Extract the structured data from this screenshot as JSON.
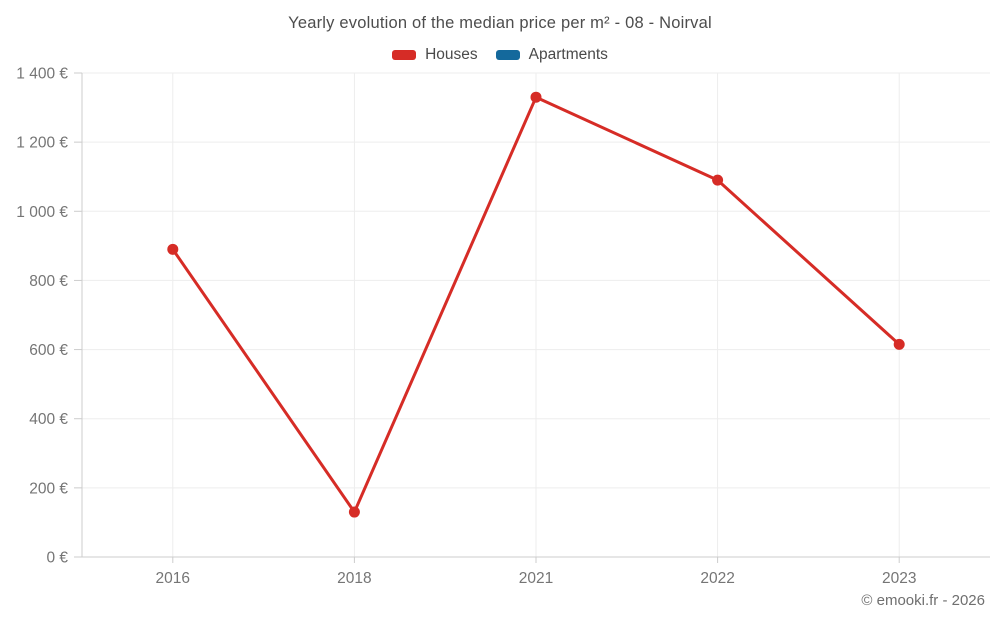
{
  "chart_data": {
    "type": "line",
    "title": "Yearly evolution of the median price per m² - 08 - Noirval",
    "categories": [
      "2016",
      "2018",
      "2021",
      "2022",
      "2023"
    ],
    "series": [
      {
        "name": "Houses",
        "color": "#d62c26",
        "values": [
          890,
          130,
          1330,
          1090,
          615
        ]
      },
      {
        "name": "Apartments",
        "color": "#14699c",
        "values": []
      }
    ],
    "ylim": [
      0,
      1400
    ],
    "y_ticks": [
      0,
      200,
      400,
      600,
      800,
      1000,
      1200,
      1400
    ],
    "y_tick_labels": [
      "0 €",
      "200 €",
      "400 €",
      "600 €",
      "800 €",
      "1 000 €",
      "1 200 €",
      "1 400 €"
    ],
    "unit": "€",
    "grid": true,
    "legend_position": "top"
  },
  "footer": {
    "credit": "© emooki.fr - 2026"
  },
  "colors": {
    "houses": "#d62c26",
    "apartments": "#14699c",
    "grid": "#ededed",
    "axis": "#cccccc",
    "tick_text": "#757575",
    "title_text": "#4d4d4d"
  }
}
